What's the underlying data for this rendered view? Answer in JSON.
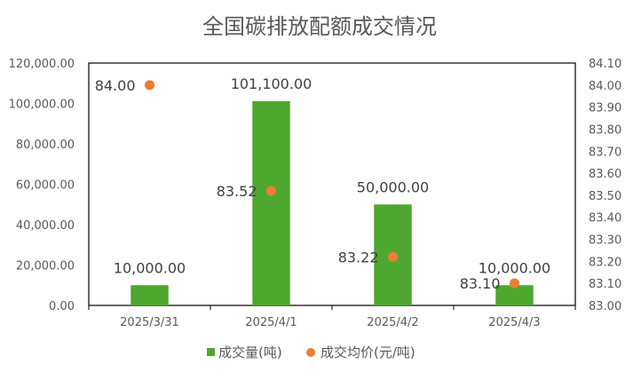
{
  "chart_data": {
    "type": "bar",
    "title": "全国碳排放配额成交情况",
    "categories": [
      "2025/3/31",
      "2025/4/1",
      "2025/4/2",
      "2025/4/3"
    ],
    "series": [
      {
        "name": "成交量(吨)",
        "type": "bar",
        "axis": "left",
        "color": "#4ea72e",
        "values": [
          10000,
          101100,
          50000,
          10000
        ],
        "labels": [
          "10,000.00",
          "101,100.00",
          "50,000.00",
          "10,000.00"
        ]
      },
      {
        "name": "成交均价(元/吨)",
        "type": "scatter",
        "axis": "right",
        "color": "#ed7d31",
        "values": [
          84.0,
          83.52,
          83.22,
          83.1
        ],
        "labels": [
          "84.00",
          "83.52",
          "83.22",
          "83.10"
        ]
      }
    ],
    "y_left": {
      "min": 0,
      "max": 120000,
      "ticks": [
        "0.00",
        "20,000.00",
        "40,000.00",
        "60,000.00",
        "80,000.00",
        "100,000.00",
        "120,000.00"
      ]
    },
    "y_right": {
      "min": 83.0,
      "max": 84.1,
      "ticks": [
        "83.00",
        "83.10",
        "83.20",
        "83.30",
        "83.40",
        "83.50",
        "83.60",
        "83.70",
        "83.80",
        "83.90",
        "84.00",
        "84.10"
      ]
    },
    "grid": false,
    "legend_position": "bottom"
  }
}
